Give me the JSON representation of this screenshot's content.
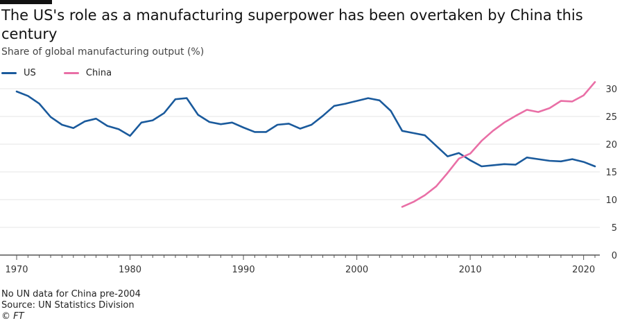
{
  "title": "The US's role as a manufacturing superpower has been overtaken by China this century",
  "subtitle": "Share of global manufacturing output (%)",
  "legend": [
    {
      "name": "US",
      "color": "#1a5a9c"
    },
    {
      "name": "China",
      "color": "#e96fa6"
    }
  ],
  "footer": {
    "note": "No UN data for China pre-2004",
    "source": "Source: UN Statistics Division",
    "copyright": "© FT"
  },
  "chart_data": {
    "type": "line",
    "title": "The US's role as a manufacturing superpower has been overtaken by China this century",
    "ylabel": "Share of global manufacturing output (%)",
    "xlabel": "",
    "xlim": [
      1970,
      2021
    ],
    "ylim": [
      0,
      30
    ],
    "x_ticks": [
      1970,
      1980,
      1990,
      2000,
      2010,
      2020
    ],
    "y_ticks": [
      0,
      5,
      10,
      15,
      20,
      25,
      30
    ],
    "grid": true,
    "legend_position": "top-left",
    "series": [
      {
        "name": "US",
        "color": "#1a5a9c",
        "x": [
          1970,
          1971,
          1972,
          1973,
          1974,
          1975,
          1976,
          1977,
          1978,
          1979,
          1980,
          1981,
          1982,
          1983,
          1984,
          1985,
          1986,
          1987,
          1988,
          1989,
          1990,
          1991,
          1992,
          1993,
          1994,
          1995,
          1996,
          1997,
          1998,
          1999,
          2000,
          2001,
          2002,
          2003,
          2004,
          2005,
          2006,
          2007,
          2008,
          2009,
          2010,
          2011,
          2012,
          2013,
          2014,
          2015,
          2016,
          2017,
          2018,
          2019,
          2020,
          2021
        ],
        "values": [
          29.5,
          28.7,
          27.3,
          24.9,
          23.5,
          22.9,
          24.1,
          24.6,
          23.3,
          22.7,
          21.5,
          23.9,
          24.3,
          25.6,
          28.1,
          28.3,
          25.3,
          24.0,
          23.6,
          23.9,
          23.0,
          22.2,
          22.2,
          23.5,
          23.7,
          22.8,
          23.5,
          25.1,
          26.9,
          27.3,
          27.8,
          28.3,
          27.9,
          26.0,
          22.4,
          22.0,
          21.6,
          19.7,
          17.8,
          18.4,
          17.1,
          16.0,
          16.2,
          16.4,
          16.3,
          17.6,
          17.3,
          17.0,
          16.9,
          17.3,
          16.8,
          16.0
        ]
      },
      {
        "name": "China",
        "color": "#e96fa6",
        "x": [
          2004,
          2005,
          2006,
          2007,
          2008,
          2009,
          2010,
          2011,
          2012,
          2013,
          2014,
          2015,
          2016,
          2017,
          2018,
          2019,
          2020,
          2021
        ],
        "values": [
          8.7,
          9.6,
          10.8,
          12.4,
          14.8,
          17.4,
          18.3,
          20.6,
          22.4,
          23.9,
          25.1,
          26.2,
          25.8,
          26.5,
          27.8,
          27.7,
          28.8,
          31.2
        ]
      }
    ]
  }
}
